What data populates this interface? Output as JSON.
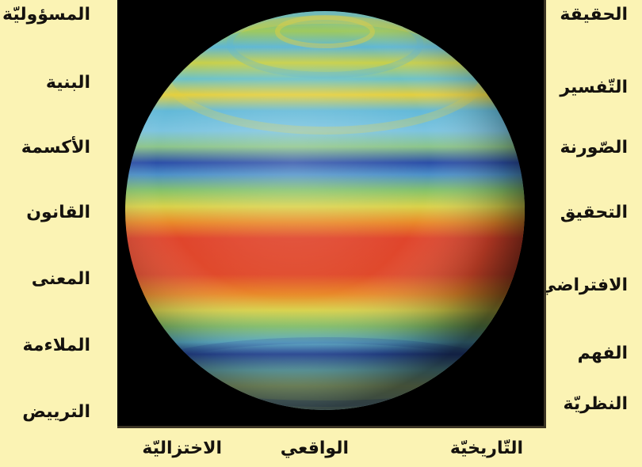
{
  "left_terms": [
    "المسؤوليّة",
    "البنية",
    "الأكسمة",
    "القانون",
    "المعنى",
    "الملاءمة",
    "الترييض"
  ],
  "right_terms": [
    "الحقيقة",
    "التّفسير",
    "الصّورنة",
    "التحقيق",
    "الافتراضي",
    "الفهم",
    "النظريّة"
  ],
  "bottom_terms": [
    "الاختزاليّة",
    "الواقعي",
    "التّاريخيّة"
  ],
  "colors": {
    "background": "#fbf3b4",
    "panel": "#000000",
    "text": "#15120e",
    "band_red": "#e0452c",
    "band_orange": "#e98a2a",
    "band_yellow": "#d9d24a",
    "band_green": "#86c36a",
    "band_cyan": "#5fb7d4",
    "band_blue": "#2c4fa8"
  },
  "image": {
    "subject": "banded-sphere-icon"
  }
}
